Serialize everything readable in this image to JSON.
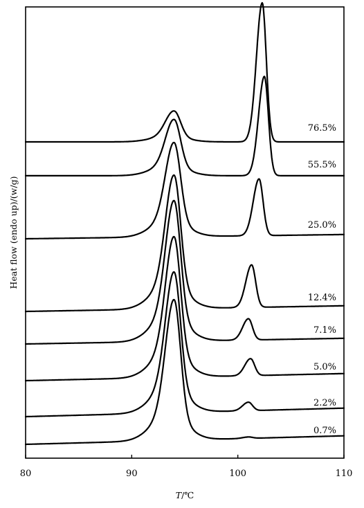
{
  "chart_data": {
    "type": "line",
    "xlabel_italic": "T",
    "xlabel_unit": "/℃",
    "ylabel": "Heat flow (endo up)/(w/g)",
    "xlim": [
      80,
      110
    ],
    "xticks": [
      "80",
      "90",
      "100",
      "110"
    ],
    "grid": false,
    "colors": {
      "line": "#000000",
      "background": "#ffffff"
    },
    "peaks": {
      "low": {
        "center": 94.0,
        "sigma": 0.8,
        "shoulder_center": 93.5,
        "shoulder_sigma": 1.6
      },
      "high": {
        "sigma": 0.55,
        "sigma_right": 0.38
      }
    },
    "series": [
      {
        "name": "76.5%",
        "baseline_y": 0.14,
        "base_start": 0.0,
        "base_slope": 0.0,
        "low_peak": 0.22,
        "high_peak": 0.98,
        "high_center": 102.3,
        "step": 0.0
      },
      {
        "name": "55.5%",
        "baseline_y": 0.1,
        "base_start": 0.02,
        "base_slope": 0.0,
        "low_peak": 0.4,
        "high_peak": 0.7,
        "high_center": 102.5,
        "step": 0.0
      },
      {
        "name": "25.0%",
        "baseline_y": 0.05,
        "base_start": 0.0,
        "base_slope": 0.03,
        "low_peak": 0.67,
        "high_peak": 0.4,
        "high_center": 102.0,
        "step": 0.0
      },
      {
        "name": "12.4%",
        "baseline_y": 0.07,
        "base_start": 0.0,
        "base_slope": 0.04,
        "low_peak": 0.95,
        "high_peak": 0.3,
        "high_center": 101.3,
        "step": 0.0
      },
      {
        "name": "7.1%",
        "baseline_y": 0.05,
        "base_start": 0.0,
        "base_slope": 0.04,
        "low_peak": 1.0,
        "high_peak": 0.15,
        "high_center": 101.0,
        "step": 0.0
      },
      {
        "name": "5.0%",
        "baseline_y": 0.04,
        "base_start": 0.0,
        "base_slope": 0.05,
        "low_peak": 1.0,
        "high_peak": 0.12,
        "high_center": 101.2,
        "step": 0.0
      },
      {
        "name": "2.2%",
        "baseline_y": 0.03,
        "base_start": 0.0,
        "base_slope": 0.06,
        "low_peak": 1.0,
        "high_peak": 0.06,
        "high_center": 101.0,
        "step": 0.0
      },
      {
        "name": "0.7%",
        "baseline_y": 0.01,
        "base_start": 0.0,
        "base_slope": 0.06,
        "low_peak": 1.0,
        "high_peak": 0.01,
        "high_center": 101.0,
        "step": 0.0
      }
    ]
  }
}
